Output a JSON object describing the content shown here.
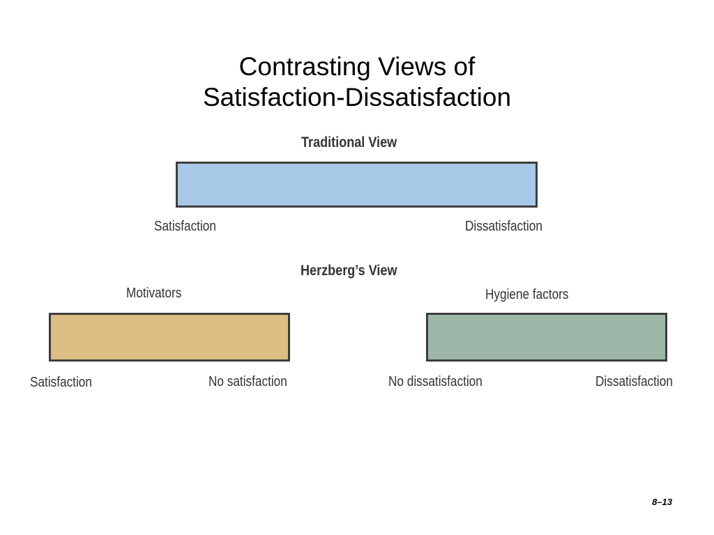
{
  "slide": {
    "title_line1": "Contrasting Views of",
    "title_line2": "Satisfaction-Dissatisfaction",
    "page_number": "8–13"
  },
  "traditional": {
    "heading": "Traditional View",
    "left_label": "Satisfaction",
    "right_label": "Dissatisfaction",
    "color": "#a7c9e7"
  },
  "herzberg": {
    "heading": "Herzberg’s View",
    "motivators": {
      "title": "Motivators",
      "left_label": "Satisfaction",
      "right_label": "No satisfaction",
      "color": "#dcbe83"
    },
    "hygiene": {
      "title": "Hygiene factors",
      "left_label": "No dissatisfaction",
      "right_label": "Dissatisfaction",
      "color": "#9db8a8"
    }
  }
}
